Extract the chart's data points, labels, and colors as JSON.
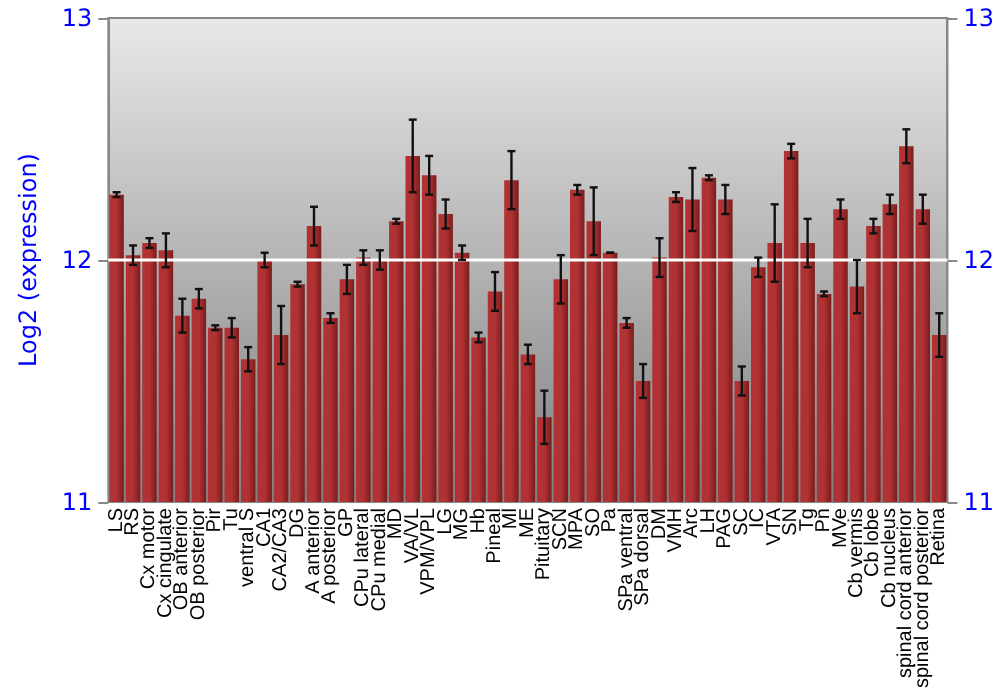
{
  "chart_data": {
    "type": "bar",
    "ylabel": "Log2 (expression)",
    "categories": [
      "LS",
      "RS",
      "Cx motor",
      "Cx cingulate",
      "OB anterior",
      "OB posterior",
      "Pir",
      "Tu",
      "ventral S",
      "CA1",
      "CA2/CA3",
      "DG",
      "A anterior",
      "A posterior",
      "GP",
      "CPu lateral",
      "CPu medial",
      "MD",
      "VA/VL",
      "VPM/VPL",
      "LG",
      "MG",
      "Hb",
      "Pineal",
      "Ml",
      "ME",
      "Pituitary",
      "SCN",
      "MPA",
      "SO",
      "Pa",
      "SPa ventral",
      "SPa dorsal",
      "DM",
      "VMH",
      "Arc",
      "LH",
      "PAG",
      "SC",
      "IC",
      "VTA",
      "SN",
      "Tg",
      "Pn",
      "MVe",
      "Cb vermis",
      "Cb lobe",
      "Cb nucleus",
      "spinal cord anterior",
      "spinal cord posterior",
      "Retina"
    ],
    "values": [
      12.27,
      12.02,
      12.07,
      12.04,
      11.77,
      11.84,
      11.72,
      11.72,
      11.59,
      12.0,
      11.69,
      11.9,
      12.14,
      11.76,
      11.92,
      12.01,
      12.0,
      12.16,
      12.43,
      12.35,
      12.19,
      12.03,
      11.68,
      11.87,
      12.33,
      11.61,
      11.35,
      11.92,
      12.29,
      12.16,
      12.03,
      11.74,
      11.5,
      12.01,
      12.26,
      12.25,
      12.34,
      12.25,
      11.5,
      11.97,
      12.07,
      12.45,
      12.07,
      11.86,
      12.21,
      11.89,
      12.14,
      12.23,
      12.47,
      12.21,
      11.69
    ],
    "errors": [
      0.01,
      0.04,
      0.02,
      0.07,
      0.07,
      0.04,
      0.01,
      0.04,
      0.05,
      0.03,
      0.12,
      0.01,
      0.08,
      0.02,
      0.06,
      0.03,
      0.04,
      0.01,
      0.15,
      0.08,
      0.06,
      0.03,
      0.02,
      0.08,
      0.12,
      0.04,
      0.11,
      0.1,
      0.02,
      0.14,
      0.0,
      0.02,
      0.07,
      0.08,
      0.02,
      0.13,
      0.01,
      0.06,
      0.06,
      0.04,
      0.16,
      0.03,
      0.1,
      0.01,
      0.04,
      0.11,
      0.03,
      0.04,
      0.07,
      0.06,
      0.09
    ],
    "color": "#b03232",
    "ylim": [
      11,
      13
    ],
    "yticks": [
      11,
      12,
      13
    ],
    "y2lim": [
      11,
      13
    ],
    "y2ticks": [
      11,
      12,
      13
    ],
    "grid": "y"
  }
}
